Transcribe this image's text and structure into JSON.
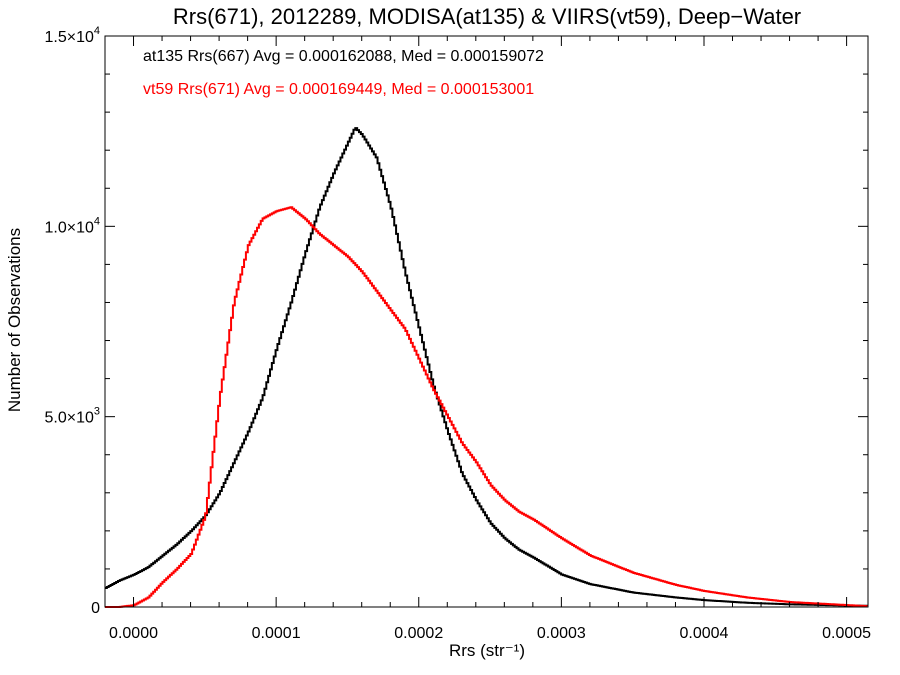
{
  "chart_data": {
    "type": "line",
    "title": "Rrs(671), 2012289, MODISA(at135) & VIIRS(vt59), Deep−Water",
    "xlabel": "Rrs (str⁻¹)",
    "ylabel": "Number of Observations",
    "xlim": [
      -2e-05,
      0.000515
    ],
    "ylim": [
      0,
      15000
    ],
    "grid": false,
    "legend_position": "top-left",
    "x_ticks": [
      {
        "value": 0.0,
        "label": "0.0000"
      },
      {
        "value": 0.0001,
        "label": "0.0001"
      },
      {
        "value": 0.0002,
        "label": "0.0002"
      },
      {
        "value": 0.0003,
        "label": "0.0003"
      },
      {
        "value": 0.0004,
        "label": "0.0004"
      },
      {
        "value": 0.0005,
        "label": "0.0005"
      }
    ],
    "y_ticks": [
      {
        "value": 0,
        "mant": "0",
        "exp": ""
      },
      {
        "value": 5000,
        "mant": "5.0×10",
        "exp": "3"
      },
      {
        "value": 10000,
        "mant": "1.0×10",
        "exp": "4"
      },
      {
        "value": 15000,
        "mant": "1.5×10",
        "exp": "4"
      }
    ],
    "series": [
      {
        "label": "at135 Rrs(667) Avg = 0.000162088, Med = 0.000159072",
        "color": "#000000",
        "x": [
          -2e-05,
          -1e-05,
          0.0,
          1e-05,
          2e-05,
          3e-05,
          4e-05,
          5e-05,
          6e-05,
          7e-05,
          8e-05,
          9e-05,
          0.0001,
          0.00011,
          0.00012,
          0.00013,
          0.00014,
          0.00015,
          0.000155,
          0.00016,
          0.000165,
          0.00017,
          0.00018,
          0.00019,
          0.0002,
          0.00021,
          0.00022,
          0.00023,
          0.00024,
          0.00025,
          0.00026,
          0.00027,
          0.00028,
          0.0003,
          0.00032,
          0.00035,
          0.00038,
          0.0004,
          0.00043,
          0.00046,
          0.0005,
          0.000515
        ],
        "y": [
          500,
          700,
          850,
          1050,
          1350,
          1650,
          2000,
          2400,
          3000,
          3800,
          4600,
          5500,
          6800,
          8000,
          9300,
          10500,
          11400,
          12200,
          12600,
          12400,
          12100,
          11800,
          10500,
          8800,
          7300,
          5800,
          4600,
          3500,
          2800,
          2200,
          1800,
          1500,
          1300,
          850,
          600,
          380,
          250,
          180,
          110,
          70,
          40,
          30
        ]
      },
      {
        "label": "vt59 Rrs(671) Avg = 0.000169449, Med = 0.000153001",
        "color": "#ff0000",
        "x": [
          -2e-05,
          -1e-05,
          0.0,
          1e-05,
          2e-05,
          3e-05,
          4e-05,
          5e-05,
          6e-05,
          7e-05,
          8e-05,
          9e-05,
          0.0001,
          0.00011,
          0.00012,
          0.00013,
          0.00014,
          0.00015,
          0.00016,
          0.00017,
          0.00018,
          0.00019,
          0.0002,
          0.00021,
          0.00022,
          0.00023,
          0.00024,
          0.00025,
          0.00026,
          0.00027,
          0.00028,
          0.0003,
          0.00032,
          0.00035,
          0.00038,
          0.0004,
          0.00043,
          0.00046,
          0.0005,
          0.000515
        ],
        "y": [
          0,
          0,
          50,
          250,
          650,
          1000,
          1400,
          2400,
          5500,
          8000,
          9500,
          10200,
          10400,
          10500,
          10200,
          9800,
          9500,
          9200,
          8800,
          8300,
          7800,
          7300,
          6500,
          5700,
          5000,
          4300,
          3800,
          3200,
          2800,
          2500,
          2300,
          1800,
          1350,
          900,
          580,
          420,
          250,
          130,
          50,
          20
        ]
      }
    ]
  }
}
